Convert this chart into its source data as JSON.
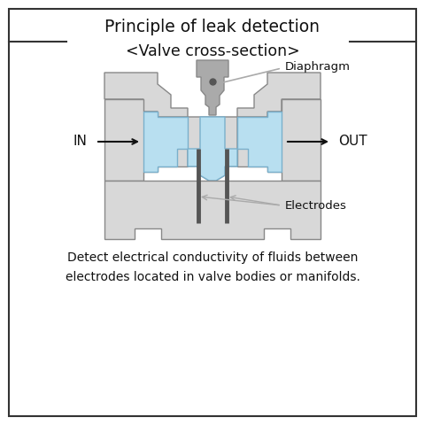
{
  "title1": "Principle of leak detection",
  "title2": "<Valve cross-section>",
  "label_diaphragm": "Diaphragm",
  "label_electrodes": "Electrodes",
  "label_in": "IN",
  "label_out": "OUT",
  "description": "Detect electrical conductivity of fluids between\nelectrodes located in valve bodies or manifolds.",
  "bg_color": "#ffffff",
  "body_color": "#d8d8d8",
  "body_edge": "#888888",
  "fluid_color": "#b8dff0",
  "fluid_edge": "#7ab0cc",
  "diaphragm_color": "#aaaaaa",
  "electrode_color": "#555555",
  "annotation_color": "#aaaaaa",
  "border_color": "#333333"
}
